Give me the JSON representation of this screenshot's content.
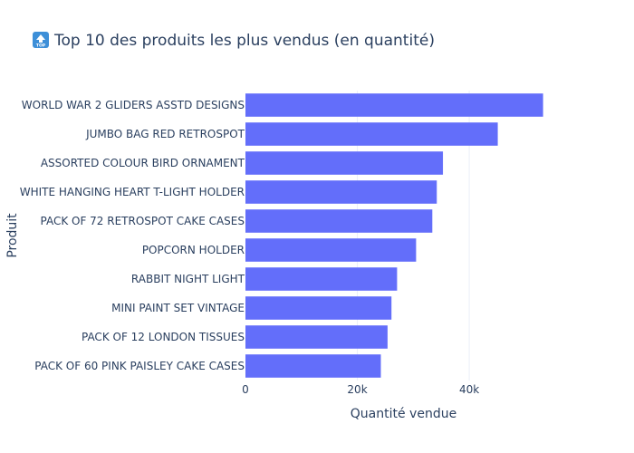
{
  "chart_data": {
    "type": "bar",
    "orientation": "horizontal",
    "title": "Top 10 des produits les plus vendus (en quantité)",
    "title_icon": "top-arrow-emoji",
    "xlabel": "Quantité vendue",
    "ylabel": "Produit",
    "xlim": [
      0,
      56500
    ],
    "xticks": [
      0,
      20000,
      40000
    ],
    "xtick_labels": [
      "0",
      "20k",
      "40k"
    ],
    "grid": true,
    "legend": "none",
    "bar_color": "#636efa",
    "categories": [
      "WORLD WAR 2 GLIDERS ASSTD DESIGNS",
      "JUMBO BAG RED RETROSPOT",
      "ASSORTED COLOUR BIRD ORNAMENT",
      "WHITE HANGING HEART T-LIGHT HOLDER",
      "PACK OF 72 RETROSPOT CAKE CASES",
      "POPCORN HOLDER",
      "RABBIT NIGHT LIGHT",
      "MINI PAINT SET VINTAGE",
      "PACK OF 12 LONDON TISSUES",
      "PACK OF 60 PINK PAISLEY CAKE CASES"
    ],
    "values": [
      53200,
      45100,
      35300,
      34200,
      33400,
      30500,
      27100,
      26100,
      25400,
      24200
    ]
  }
}
